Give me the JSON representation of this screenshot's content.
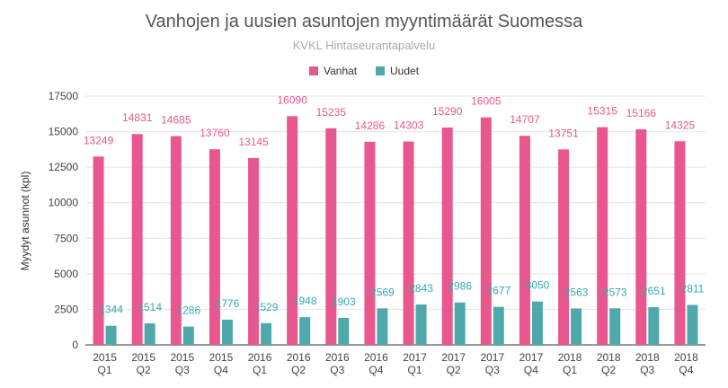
{
  "chart_data": {
    "type": "bar",
    "title": "Vanhojen ja uusien asuntojen myyntimäärät Suomessa",
    "subtitle": "KVKL Hintaseurantapalvelu",
    "xlabel": "",
    "ylabel": "Myydyt asunnot (kpl)",
    "ylim": [
      0,
      17500
    ],
    "yticks": [
      "0",
      "2500",
      "5000",
      "7500",
      "10000",
      "12500",
      "15000",
      "17500"
    ],
    "ytick_values": [
      0,
      2500,
      5000,
      7500,
      10000,
      12500,
      15000,
      17500
    ],
    "grid": true,
    "legend_position": "top-center",
    "categories": [
      [
        "2015",
        "Q1"
      ],
      [
        "2015",
        "Q2"
      ],
      [
        "2015",
        "Q3"
      ],
      [
        "2015",
        "Q4"
      ],
      [
        "2016",
        "Q1"
      ],
      [
        "2016",
        "Q2"
      ],
      [
        "2016",
        "Q3"
      ],
      [
        "2016",
        "Q4"
      ],
      [
        "2017",
        "Q1"
      ],
      [
        "2017",
        "Q2"
      ],
      [
        "2017",
        "Q3"
      ],
      [
        "2017",
        "Q4"
      ],
      [
        "2018",
        "Q1"
      ],
      [
        "2018",
        "Q2"
      ],
      [
        "2018",
        "Q3"
      ],
      [
        "2018",
        "Q4"
      ]
    ],
    "series": [
      {
        "name": "Vanhat",
        "color": "#e8588e",
        "label_color": "#e8588e",
        "values": [
          13249,
          14831,
          14685,
          13760,
          13145,
          16090,
          15235,
          14286,
          14303,
          15290,
          16005,
          14707,
          13751,
          15315,
          15166,
          14325
        ]
      },
      {
        "name": "Uudet",
        "color": "#4fa9ab",
        "label_color": "#34aab0",
        "values": [
          1344,
          1514,
          1286,
          1776,
          1529,
          1948,
          1903,
          2569,
          2843,
          2986,
          2677,
          3050,
          2563,
          2573,
          2651,
          2811
        ]
      }
    ]
  }
}
